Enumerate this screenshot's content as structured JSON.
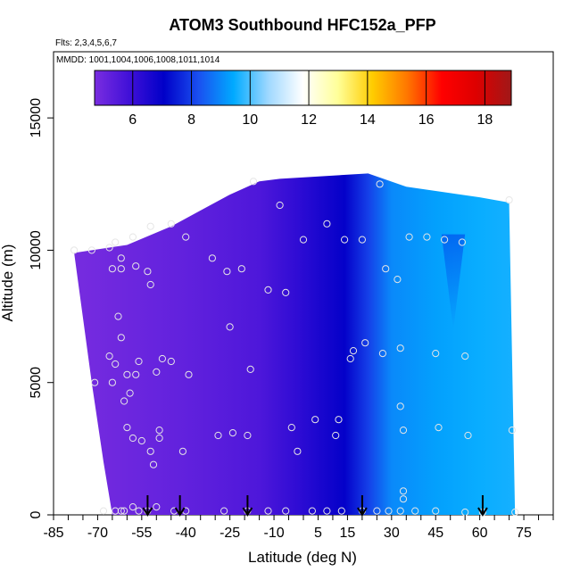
{
  "chart_data": {
    "type": "heatmap",
    "title": "ATOM3 Southbound HFC152a_PFP",
    "subtitle_flights": "Flts: 2,3,4,5,6,7",
    "subtitle_dates": "MMDD: 1001,1004,1006,1008,1011,1014",
    "xlabel": "Latitude (deg N)",
    "ylabel": "Altitude (m)",
    "xlim": [
      -85,
      85
    ],
    "ylim": [
      0,
      17500
    ],
    "x_ticks": [
      "-85",
      "-70",
      "-55",
      "-40",
      "-25",
      "-10",
      "5",
      "15",
      "30",
      "45",
      "60",
      "75"
    ],
    "y_ticks": [
      "0",
      "5000",
      "10000",
      "15000"
    ],
    "colorbar": {
      "ticks": [
        "6",
        "8",
        "10",
        "12",
        "14",
        "16",
        "18"
      ],
      "range": [
        4.7,
        18.9
      ],
      "colors": [
        "#7a2de0",
        "#4010d8",
        "#0000c8",
        "#1a50f0",
        "#00aaff",
        "#9fd8ff",
        "#ffffff",
        "#ffff99",
        "#ffcc00",
        "#ff7700",
        "#ff0000",
        "#dd0000",
        "#a01818"
      ]
    },
    "field_color_stops": [
      {
        "lat": -75,
        "value": 4.8
      },
      {
        "lat": -40,
        "value": 5.2
      },
      {
        "lat": -15,
        "value": 5.6
      },
      {
        "lat": -2,
        "value": 6.2
      },
      {
        "lat": 6,
        "value": 6.6
      },
      {
        "lat": 14,
        "value": 7.0
      },
      {
        "lat": 22,
        "value": 8.0
      },
      {
        "lat": 30,
        "value": 9.0
      },
      {
        "lat": 45,
        "value": 9.3
      },
      {
        "lat": 60,
        "value": 9.5
      },
      {
        "lat": 72,
        "value": 9.6
      }
    ],
    "curtain_top_profile": [
      {
        "lat": -78,
        "alt": 9900
      },
      {
        "lat": -60,
        "alt": 10200
      },
      {
        "lat": -45,
        "alt": 10900
      },
      {
        "lat": -35,
        "alt": 11500
      },
      {
        "lat": -25,
        "alt": 12100
      },
      {
        "lat": -15,
        "alt": 12600
      },
      {
        "lat": -8,
        "alt": 12700
      },
      {
        "lat": 22,
        "alt": 12900
      },
      {
        "lat": 35,
        "alt": 12400
      },
      {
        "lat": 60,
        "alt": 12000
      },
      {
        "lat": 70,
        "alt": 11800
      }
    ],
    "curtain_bottom_profile": [
      {
        "lat": -65,
        "alt": 0
      },
      {
        "lat": 72,
        "alt": 0
      }
    ],
    "curtain_left_profile": [
      {
        "lat": -78,
        "alt": 9900
      },
      {
        "lat": -72,
        "alt": 5000
      },
      {
        "lat": -68,
        "alt": 2000
      },
      {
        "lat": -65,
        "alt": 0
      }
    ],
    "curtain_right_profile": [
      {
        "lat": 70,
        "alt": 11800
      },
      {
        "lat": 72,
        "alt": 0
      }
    ],
    "sample_points": [
      {
        "lat": -78,
        "alt": 10000
      },
      {
        "lat": -72,
        "alt": 10000
      },
      {
        "lat": -66,
        "alt": 10100
      },
      {
        "lat": -64,
        "alt": 10300
      },
      {
        "lat": -62,
        "alt": 9700
      },
      {
        "lat": -65,
        "alt": 9300
      },
      {
        "lat": -62,
        "alt": 9300
      },
      {
        "lat": -57,
        "alt": 9400
      },
      {
        "lat": -53,
        "alt": 9200
      },
      {
        "lat": -58,
        "alt": 10500
      },
      {
        "lat": -52,
        "alt": 10900
      },
      {
        "lat": -45,
        "alt": 11000
      },
      {
        "lat": -40,
        "alt": 10500
      },
      {
        "lat": -52,
        "alt": 8700
      },
      {
        "lat": -31,
        "alt": 9700
      },
      {
        "lat": -26,
        "alt": 9200
      },
      {
        "lat": -21,
        "alt": 9300
      },
      {
        "lat": -17,
        "alt": 12600
      },
      {
        "lat": -8,
        "alt": 11700
      },
      {
        "lat": -12,
        "alt": 8500
      },
      {
        "lat": -6,
        "alt": 8400
      },
      {
        "lat": 0,
        "alt": 10400
      },
      {
        "lat": 8,
        "alt": 11000
      },
      {
        "lat": 14,
        "alt": 10400
      },
      {
        "lat": 20,
        "alt": 10400
      },
      {
        "lat": 26,
        "alt": 12500
      },
      {
        "lat": 28,
        "alt": 9300
      },
      {
        "lat": 32,
        "alt": 8900
      },
      {
        "lat": 36,
        "alt": 10500
      },
      {
        "lat": 42,
        "alt": 10500
      },
      {
        "lat": 48,
        "alt": 10400
      },
      {
        "lat": 54,
        "alt": 10300
      },
      {
        "lat": 70,
        "alt": 11900
      },
      {
        "lat": -63,
        "alt": 7500
      },
      {
        "lat": -62,
        "alt": 6700
      },
      {
        "lat": -66,
        "alt": 6000
      },
      {
        "lat": -64,
        "alt": 5700
      },
      {
        "lat": -56,
        "alt": 5800
      },
      {
        "lat": -48,
        "alt": 5900
      },
      {
        "lat": -45,
        "alt": 5800
      },
      {
        "lat": -39,
        "alt": 5300
      },
      {
        "lat": -60,
        "alt": 5300
      },
      {
        "lat": -57,
        "alt": 5300
      },
      {
        "lat": -50,
        "alt": 5400
      },
      {
        "lat": -71,
        "alt": 5000
      },
      {
        "lat": -65,
        "alt": 5000
      },
      {
        "lat": -59,
        "alt": 4600
      },
      {
        "lat": -61,
        "alt": 4300
      },
      {
        "lat": -25,
        "alt": 7100
      },
      {
        "lat": -18,
        "alt": 5500
      },
      {
        "lat": 17,
        "alt": 6200
      },
      {
        "lat": 21,
        "alt": 6500
      },
      {
        "lat": 27,
        "alt": 6100
      },
      {
        "lat": 33,
        "alt": 6300
      },
      {
        "lat": 45,
        "alt": 6100
      },
      {
        "lat": 55,
        "alt": 6000
      },
      {
        "lat": 16,
        "alt": 5900
      },
      {
        "lat": 33,
        "alt": 4100
      },
      {
        "lat": 34,
        "alt": 3200
      },
      {
        "lat": 46,
        "alt": 3300
      },
      {
        "lat": 56,
        "alt": 3000
      },
      {
        "lat": 71,
        "alt": 3200
      },
      {
        "lat": 12,
        "alt": 3600
      },
      {
        "lat": 4,
        "alt": 3600
      },
      {
        "lat": 11,
        "alt": 3000
      },
      {
        "lat": -4,
        "alt": 3300
      },
      {
        "lat": -19,
        "alt": 3000
      },
      {
        "lat": -24,
        "alt": 3100
      },
      {
        "lat": -29,
        "alt": 3000
      },
      {
        "lat": -49,
        "alt": 3200
      },
      {
        "lat": -49,
        "alt": 2900
      },
      {
        "lat": -60,
        "alt": 3300
      },
      {
        "lat": -58,
        "alt": 2900
      },
      {
        "lat": -55,
        "alt": 2800
      },
      {
        "lat": -52,
        "alt": 2400
      },
      {
        "lat": -51,
        "alt": 1900
      },
      {
        "lat": -41,
        "alt": 2400
      },
      {
        "lat": -2,
        "alt": 2400
      },
      {
        "lat": 34,
        "alt": 900
      },
      {
        "lat": 34,
        "alt": 600
      },
      {
        "lat": -68,
        "alt": 150
      },
      {
        "lat": -64,
        "alt": 150
      },
      {
        "lat": -62,
        "alt": 150
      },
      {
        "lat": -61,
        "alt": 150
      },
      {
        "lat": -58,
        "alt": 300
      },
      {
        "lat": -56,
        "alt": 150
      },
      {
        "lat": -53,
        "alt": 150
      },
      {
        "lat": -50,
        "alt": 300
      },
      {
        "lat": -44,
        "alt": 150
      },
      {
        "lat": -40,
        "alt": 150
      },
      {
        "lat": -27,
        "alt": 150
      },
      {
        "lat": -19,
        "alt": 150
      },
      {
        "lat": -12,
        "alt": 150
      },
      {
        "lat": -6,
        "alt": 150
      },
      {
        "lat": 3,
        "alt": 150
      },
      {
        "lat": 8,
        "alt": 150
      },
      {
        "lat": 13,
        "alt": 150
      },
      {
        "lat": 20,
        "alt": 150
      },
      {
        "lat": 25,
        "alt": 150
      },
      {
        "lat": 29,
        "alt": 150
      },
      {
        "lat": 33,
        "alt": 150
      },
      {
        "lat": 38,
        "alt": 150
      },
      {
        "lat": 45,
        "alt": 150
      },
      {
        "lat": 55,
        "alt": 100
      },
      {
        "lat": 61,
        "alt": 100
      },
      {
        "lat": 72,
        "alt": 100
      }
    ],
    "arrows_at_lat": [
      -53,
      -42,
      -19,
      20,
      61
    ]
  }
}
